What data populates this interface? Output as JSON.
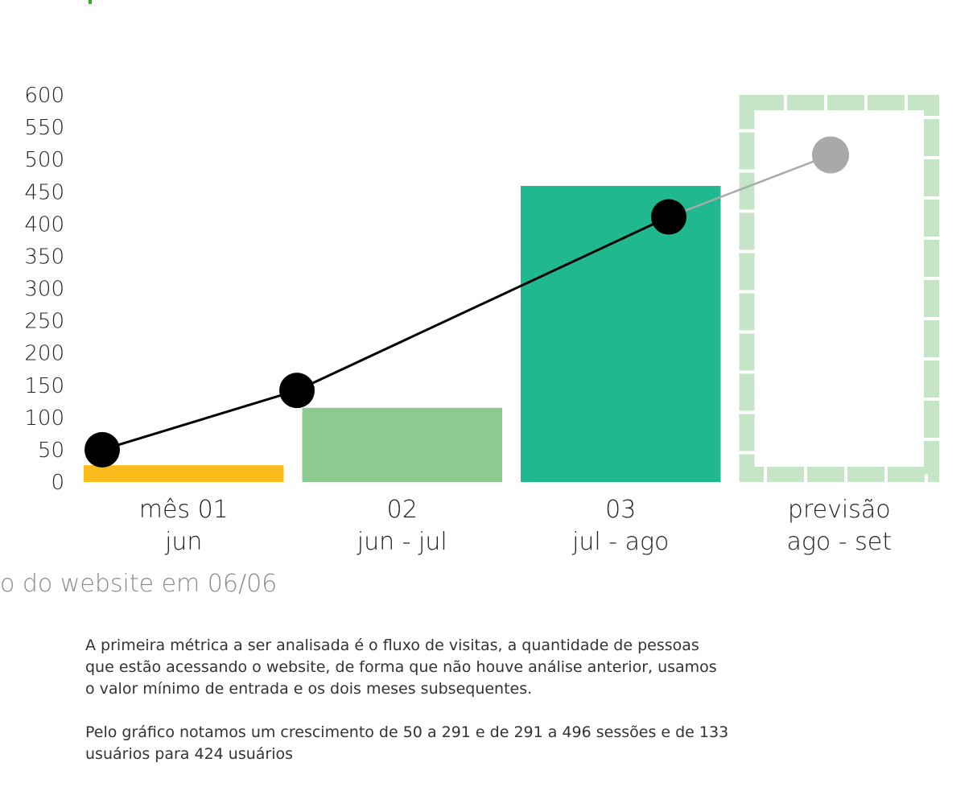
{
  "chart_data": {
    "type": "bar",
    "title": "",
    "xlabel": "",
    "ylabel": "",
    "ylim": [
      0,
      600
    ],
    "yticks": [
      0,
      50,
      100,
      150,
      200,
      250,
      300,
      350,
      400,
      450,
      500,
      550,
      600
    ],
    "grid": false,
    "categories": [
      {
        "line1": "mês 01",
        "line2": "jun"
      },
      {
        "line1": "02",
        "line2": "jun - jul"
      },
      {
        "line1": "03",
        "line2": "jul - ago"
      },
      {
        "line1": "previsão",
        "line2": "ago - set"
      }
    ],
    "bars": {
      "values": [
        26,
        115,
        459,
        600
      ],
      "colors": [
        "#fbbc1c",
        "#8dca8f",
        "#20b98f",
        "#c6e5c7"
      ],
      "forecast_style": "dashed-outline"
    },
    "line": {
      "values": [
        50,
        142,
        411,
        507
      ],
      "color": "#000000",
      "forecast_color": "#a9a9a9"
    }
  },
  "caption": "o do website em 06/06",
  "paragraphs": [
    "A primeira métrica a ser analisada é o fluxo de visitas, a quantidade de pessoas que estão acessando o website, de forma que não houve análise anterior, usamos o valor mínimo de entrada e os dois meses subsequentes.",
    "Pelo gráfico notamos um crescimento de 50 a 291 e de 291 a 496 sessões e de 133 usuários para 424 usuários"
  ]
}
